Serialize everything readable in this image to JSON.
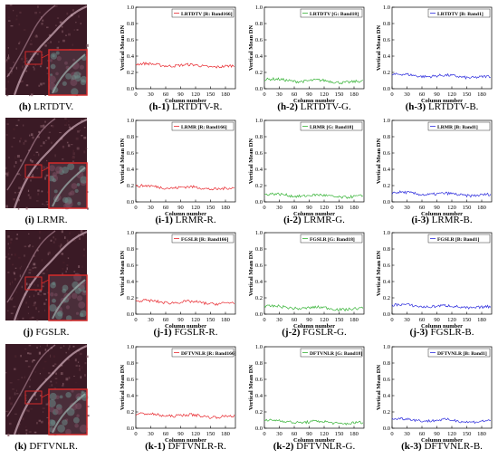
{
  "colors": {
    "r": "#e8262c",
    "g": "#33b233",
    "b": "#2b2bdd",
    "img_bg": "#3a1a25",
    "inset_border": "#d42a2a"
  },
  "common": {
    "ylabel": "Vertical Mean DN",
    "xlabel": "Column number",
    "yticks": [
      "0.0",
      "0.2",
      "0.4",
      "0.6",
      "0.8",
      "1.0"
    ],
    "xticks": [
      "0",
      "30",
      "60",
      "90",
      "120",
      "150",
      "180"
    ]
  },
  "rows": [
    {
      "method": "LRTDTV",
      "image_caption": {
        "letter": "(h)",
        "text": "LRTDTV."
      },
      "charts": [
        {
          "caption": {
            "letter": "(h-1)",
            "text": "LRTDTV-R."
          },
          "legend": "LRTDTV [R: Band166]",
          "color_key": "r",
          "mean": 0.3
        },
        {
          "caption": {
            "letter": "(h-2)",
            "text": "LRTDTV-G."
          },
          "legend": "LRTDTV [G: Band18]",
          "color_key": "g",
          "mean": 0.11
        },
        {
          "caption": {
            "letter": "(h-3)",
            "text": "LRTDTV-B."
          },
          "legend": "LRTDTV [B: Band1]",
          "color_key": "b",
          "mean": 0.17
        }
      ]
    },
    {
      "method": "LRMR",
      "image_caption": {
        "letter": "(i)",
        "text": "LRMR."
      },
      "charts": [
        {
          "caption": {
            "letter": "(i-1)",
            "text": "LRMR-R."
          },
          "legend": "LRMR [R: Band166]",
          "color_key": "r",
          "mean": 0.19
        },
        {
          "caption": {
            "letter": "(i-2)",
            "text": "LRMR-G."
          },
          "legend": "LRMR [G: Band18]",
          "color_key": "g",
          "mean": 0.09
        },
        {
          "caption": {
            "letter": "(i-3)",
            "text": "LRMR-B."
          },
          "legend": "LRMR [B: Band1]",
          "color_key": "b",
          "mean": 0.11
        }
      ]
    },
    {
      "method": "FGSLR",
      "image_caption": {
        "letter": "(j)",
        "text": "FGSLR."
      },
      "charts": [
        {
          "caption": {
            "letter": "(j-1)",
            "text": "FGSLR-R."
          },
          "legend": "FGSLR [R: Band166]",
          "color_key": "r",
          "mean": 0.16
        },
        {
          "caption": {
            "letter": "(j-2)",
            "text": "FGSLR-G."
          },
          "legend": "FGSLR [G: Band18]",
          "color_key": "g",
          "mean": 0.09
        },
        {
          "caption": {
            "letter": "(j-3)",
            "text": "FGSLR-B."
          },
          "legend": "FGSLR [B: Band1]",
          "color_key": "b",
          "mean": 0.11
        }
      ]
    },
    {
      "method": "DFTVNLR",
      "image_caption": {
        "letter": "(k)",
        "text": "DFTVNLR."
      },
      "charts": [
        {
          "caption": {
            "letter": "(k-1)",
            "text": "DFTVNLR-R."
          },
          "legend": "DFTVNLR [R: Band166]",
          "color_key": "r",
          "mean": 0.17
        },
        {
          "caption": {
            "letter": "(k-2)",
            "text": "DFTVNLR-G."
          },
          "legend": "DFTVNLR [G: Band18]",
          "color_key": "g",
          "mean": 0.09
        },
        {
          "caption": {
            "letter": "(k-3)",
            "text": "DFTVNLR-B."
          },
          "legend": "DFTVNLR [B: Band1]",
          "color_key": "b",
          "mean": 0.11
        }
      ]
    }
  ],
  "chart_data": [
    {
      "type": "line",
      "xlabel": "Column number",
      "ylabel": "Vertical Mean DN",
      "xlim": [
        0,
        200
      ],
      "ylim": [
        0,
        1
      ],
      "legend_position": "top-right",
      "series": [
        {
          "name": "LRTDTV [R: Band166]",
          "x_range": [
            0,
            199
          ],
          "profile": "noisy",
          "mean": 0.3
        }
      ]
    },
    {
      "type": "line",
      "xlabel": "Column number",
      "ylabel": "Vertical Mean DN",
      "xlim": [
        0,
        200
      ],
      "ylim": [
        0,
        1
      ],
      "legend_position": "top-right",
      "series": [
        {
          "name": "LRTDTV [G: Band18]",
          "x_range": [
            0,
            199
          ],
          "profile": "noisy",
          "mean": 0.11
        }
      ]
    },
    {
      "type": "line",
      "xlabel": "Column number",
      "ylabel": "Vertical Mean DN",
      "xlim": [
        0,
        200
      ],
      "ylim": [
        0,
        1
      ],
      "legend_position": "top-right",
      "series": [
        {
          "name": "LRTDTV [B: Band1]",
          "x_range": [
            0,
            199
          ],
          "profile": "noisy",
          "mean": 0.17
        }
      ]
    },
    {
      "type": "line",
      "xlabel": "Column number",
      "ylabel": "Vertical Mean DN",
      "xlim": [
        0,
        200
      ],
      "ylim": [
        0,
        1
      ],
      "legend_position": "top-right",
      "series": [
        {
          "name": "LRMR [R: Band166]",
          "x_range": [
            0,
            199
          ],
          "profile": "noisy",
          "mean": 0.19
        }
      ]
    },
    {
      "type": "line",
      "xlabel": "Column number",
      "ylabel": "Vertical Mean DN",
      "xlim": [
        0,
        200
      ],
      "ylim": [
        0,
        1
      ],
      "legend_position": "top-right",
      "series": [
        {
          "name": "LRMR [G: Band18]",
          "x_range": [
            0,
            199
          ],
          "profile": "noisy",
          "mean": 0.09
        }
      ]
    },
    {
      "type": "line",
      "xlabel": "Column number",
      "ylabel": "Vertical Mean DN",
      "xlim": [
        0,
        200
      ],
      "ylim": [
        0,
        1
      ],
      "legend_position": "top-right",
      "series": [
        {
          "name": "LRMR [B: Band1]",
          "x_range": [
            0,
            199
          ],
          "profile": "noisy",
          "mean": 0.11
        }
      ]
    },
    {
      "type": "line",
      "xlabel": "Column number",
      "ylabel": "Vertical Mean DN",
      "xlim": [
        0,
        200
      ],
      "ylim": [
        0,
        1
      ],
      "legend_position": "top-right",
      "series": [
        {
          "name": "FGSLR [R: Band166]",
          "x_range": [
            0,
            199
          ],
          "profile": "noisy",
          "mean": 0.16
        }
      ]
    },
    {
      "type": "line",
      "xlabel": "Column number",
      "ylabel": "Vertical Mean DN",
      "xlim": [
        0,
        200
      ],
      "ylim": [
        0,
        1
      ],
      "legend_position": "top-right",
      "series": [
        {
          "name": "FGSLR [G: Band18]",
          "x_range": [
            0,
            199
          ],
          "profile": "noisy",
          "mean": 0.09
        }
      ]
    },
    {
      "type": "line",
      "xlabel": "Column number",
      "ylabel": "Vertical Mean DN",
      "xlim": [
        0,
        200
      ],
      "ylim": [
        0,
        1
      ],
      "legend_position": "top-right",
      "series": [
        {
          "name": "FGSLR [B: Band1]",
          "x_range": [
            0,
            199
          ],
          "profile": "noisy",
          "mean": 0.11
        }
      ]
    },
    {
      "type": "line",
      "xlabel": "Column number",
      "ylabel": "Vertical Mean DN",
      "xlim": [
        0,
        200
      ],
      "ylim": [
        0,
        1
      ],
      "legend_position": "top-right",
      "series": [
        {
          "name": "DFTVNLR [R: Band166]",
          "x_range": [
            0,
            199
          ],
          "profile": "noisy",
          "mean": 0.17
        }
      ]
    },
    {
      "type": "line",
      "xlabel": "Column number",
      "ylabel": "Vertical Mean DN",
      "xlim": [
        0,
        200
      ],
      "ylim": [
        0,
        1
      ],
      "legend_position": "top-right",
      "series": [
        {
          "name": "DFTVNLR [G: Band18]",
          "x_range": [
            0,
            199
          ],
          "profile": "noisy",
          "mean": 0.09
        }
      ]
    },
    {
      "type": "line",
      "xlabel": "Column number",
      "ylabel": "Vertical Mean DN",
      "xlim": [
        0,
        200
      ],
      "ylim": [
        0,
        1
      ],
      "legend_position": "top-right",
      "series": [
        {
          "name": "DFTVNLR [B: Band1]",
          "x_range": [
            0,
            199
          ],
          "profile": "noisy",
          "mean": 0.11
        }
      ]
    }
  ]
}
